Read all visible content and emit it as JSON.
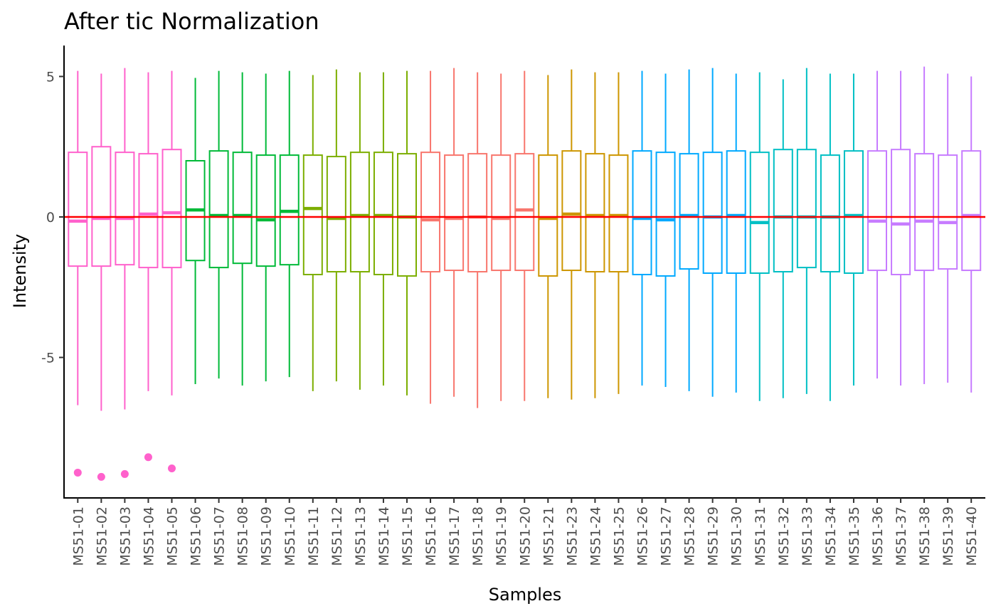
{
  "chart_data": {
    "type": "boxplot",
    "title": "After tic Normalization",
    "xlabel": "Samples",
    "ylabel": "Intensity",
    "ylim": [
      -10,
      6.1
    ],
    "yticks": [
      -5,
      0,
      5
    ],
    "reference_line": {
      "y": 0,
      "color": "#ff0000"
    },
    "grid": false,
    "legend": "none",
    "groups": [
      {
        "samples": [
          "MS51-01",
          "MS51-02",
          "MS51-03",
          "MS51-04",
          "MS51-05"
        ],
        "color": "#ff61cc"
      },
      {
        "samples": [
          "MS51-06",
          "MS51-07",
          "MS51-08",
          "MS51-09",
          "MS51-10"
        ],
        "color": "#00ba38"
      },
      {
        "samples": [
          "MS51-11",
          "MS51-12",
          "MS51-13",
          "MS51-14",
          "MS51-15"
        ],
        "color": "#7cae00"
      },
      {
        "samples": [
          "MS51-16",
          "MS51-17",
          "MS51-18",
          "MS51-19",
          "MS51-20"
        ],
        "color": "#f8766d"
      },
      {
        "samples": [
          "MS51-21",
          "MS51-23",
          "MS51-24",
          "MS51-25"
        ],
        "color": "#cd9600"
      },
      {
        "samples": [
          "MS51-26",
          "MS51-27",
          "MS51-28",
          "MS51-29",
          "MS51-30"
        ],
        "color": "#00a9ff"
      },
      {
        "samples": [
          "MS51-31",
          "MS51-32",
          "MS51-33",
          "MS51-34",
          "MS51-35"
        ],
        "color": "#00bfc4"
      },
      {
        "samples": [
          "MS51-36",
          "MS51-37",
          "MS51-38",
          "MS51-39",
          "MS51-40"
        ],
        "color": "#c77cff"
      }
    ],
    "categories": [
      "MS51-01",
      "MS51-02",
      "MS51-03",
      "MS51-04",
      "MS51-05",
      "MS51-06",
      "MS51-07",
      "MS51-08",
      "MS51-09",
      "MS51-10",
      "MS51-11",
      "MS51-12",
      "MS51-13",
      "MS51-14",
      "MS51-15",
      "MS51-16",
      "MS51-17",
      "MS51-18",
      "MS51-19",
      "MS51-20",
      "MS51-21",
      "MS51-23",
      "MS51-24",
      "MS51-25",
      "MS51-26",
      "MS51-27",
      "MS51-28",
      "MS51-29",
      "MS51-30",
      "MS51-31",
      "MS51-32",
      "MS51-33",
      "MS51-34",
      "MS51-35",
      "MS51-36",
      "MS51-37",
      "MS51-38",
      "MS51-39",
      "MS51-40"
    ],
    "boxes": [
      {
        "low": -6.7,
        "q1": -1.75,
        "median": -0.15,
        "q3": 2.3,
        "high": 5.2,
        "outliers": [
          -9.1
        ]
      },
      {
        "low": -6.9,
        "q1": -1.75,
        "median": -0.05,
        "q3": 2.5,
        "high": 5.1,
        "outliers": [
          -9.25
        ]
      },
      {
        "low": -6.85,
        "q1": -1.7,
        "median": -0.05,
        "q3": 2.3,
        "high": 5.3,
        "outliers": [
          -9.15
        ]
      },
      {
        "low": -6.2,
        "q1": -1.8,
        "median": 0.1,
        "q3": 2.25,
        "high": 5.15,
        "outliers": [
          -8.55
        ]
      },
      {
        "low": -6.35,
        "q1": -1.8,
        "median": 0.15,
        "q3": 2.4,
        "high": 5.2,
        "outliers": [
          -8.95
        ]
      },
      {
        "low": -5.95,
        "q1": -1.55,
        "median": 0.25,
        "q3": 2.0,
        "high": 4.95,
        "outliers": []
      },
      {
        "low": -5.75,
        "q1": -1.8,
        "median": 0.05,
        "q3": 2.35,
        "high": 5.2,
        "outliers": []
      },
      {
        "low": -6.0,
        "q1": -1.65,
        "median": 0.05,
        "q3": 2.3,
        "high": 5.15,
        "outliers": []
      },
      {
        "low": -5.85,
        "q1": -1.75,
        "median": -0.1,
        "q3": 2.2,
        "high": 5.1,
        "outliers": []
      },
      {
        "low": -5.7,
        "q1": -1.7,
        "median": 0.2,
        "q3": 2.2,
        "high": 5.2,
        "outliers": []
      },
      {
        "low": -6.2,
        "q1": -2.05,
        "median": 0.3,
        "q3": 2.2,
        "high": 5.05,
        "outliers": []
      },
      {
        "low": -5.85,
        "q1": -1.95,
        "median": -0.05,
        "q3": 2.15,
        "high": 5.25,
        "outliers": []
      },
      {
        "low": -6.15,
        "q1": -1.95,
        "median": 0.05,
        "q3": 2.3,
        "high": 5.15,
        "outliers": []
      },
      {
        "low": -6.0,
        "q1": -2.05,
        "median": 0.05,
        "q3": 2.3,
        "high": 5.15,
        "outliers": []
      },
      {
        "low": -6.35,
        "q1": -2.1,
        "median": 0.0,
        "q3": 2.25,
        "high": 5.2,
        "outliers": []
      },
      {
        "low": -6.65,
        "q1": -1.95,
        "median": -0.1,
        "q3": 2.3,
        "high": 5.2,
        "outliers": []
      },
      {
        "low": -6.4,
        "q1": -1.9,
        "median": -0.05,
        "q3": 2.2,
        "high": 5.3,
        "outliers": []
      },
      {
        "low": -6.8,
        "q1": -1.95,
        "median": 0.0,
        "q3": 2.25,
        "high": 5.15,
        "outliers": []
      },
      {
        "low": -6.55,
        "q1": -1.9,
        "median": -0.05,
        "q3": 2.2,
        "high": 5.1,
        "outliers": []
      },
      {
        "low": -6.55,
        "q1": -1.9,
        "median": 0.25,
        "q3": 2.25,
        "high": 5.2,
        "outliers": []
      },
      {
        "low": -6.45,
        "q1": -2.1,
        "median": -0.05,
        "q3": 2.2,
        "high": 5.05,
        "outliers": []
      },
      {
        "low": -6.5,
        "q1": -1.9,
        "median": 0.1,
        "q3": 2.35,
        "high": 5.25,
        "outliers": []
      },
      {
        "low": -6.45,
        "q1": -1.95,
        "median": 0.05,
        "q3": 2.25,
        "high": 5.15,
        "outliers": []
      },
      {
        "low": -6.3,
        "q1": -1.95,
        "median": 0.05,
        "q3": 2.2,
        "high": 5.15,
        "outliers": []
      },
      {
        "low": -6.0,
        "q1": -2.05,
        "median": -0.05,
        "q3": 2.35,
        "high": 5.2,
        "outliers": []
      },
      {
        "low": -6.05,
        "q1": -2.1,
        "median": -0.1,
        "q3": 2.3,
        "high": 5.1,
        "outliers": []
      },
      {
        "low": -6.2,
        "q1": -1.85,
        "median": 0.05,
        "q3": 2.25,
        "high": 5.25,
        "outliers": []
      },
      {
        "low": -6.4,
        "q1": -2.0,
        "median": 0.0,
        "q3": 2.3,
        "high": 5.3,
        "outliers": []
      },
      {
        "low": -6.25,
        "q1": -2.0,
        "median": 0.05,
        "q3": 2.35,
        "high": 5.1,
        "outliers": []
      },
      {
        "low": -6.55,
        "q1": -2.0,
        "median": -0.2,
        "q3": 2.3,
        "high": 5.15,
        "outliers": []
      },
      {
        "low": -6.45,
        "q1": -1.95,
        "median": 0.0,
        "q3": 2.4,
        "high": 4.9,
        "outliers": []
      },
      {
        "low": -6.3,
        "q1": -1.8,
        "median": 0.0,
        "q3": 2.4,
        "high": 5.3,
        "outliers": []
      },
      {
        "low": -6.55,
        "q1": -1.95,
        "median": 0.0,
        "q3": 2.2,
        "high": 5.1,
        "outliers": []
      },
      {
        "low": -6.0,
        "q1": -2.0,
        "median": 0.05,
        "q3": 2.35,
        "high": 5.1,
        "outliers": []
      },
      {
        "low": -5.75,
        "q1": -1.9,
        "median": -0.15,
        "q3": 2.35,
        "high": 5.2,
        "outliers": []
      },
      {
        "low": -6.0,
        "q1": -2.05,
        "median": -0.25,
        "q3": 2.4,
        "high": 5.2,
        "outliers": []
      },
      {
        "low": -5.95,
        "q1": -1.9,
        "median": -0.15,
        "q3": 2.25,
        "high": 5.35,
        "outliers": []
      },
      {
        "low": -5.9,
        "q1": -1.85,
        "median": -0.2,
        "q3": 2.2,
        "high": 5.1,
        "outliers": []
      },
      {
        "low": -6.25,
        "q1": -1.9,
        "median": 0.05,
        "q3": 2.35,
        "high": 5.0,
        "outliers": []
      }
    ]
  }
}
